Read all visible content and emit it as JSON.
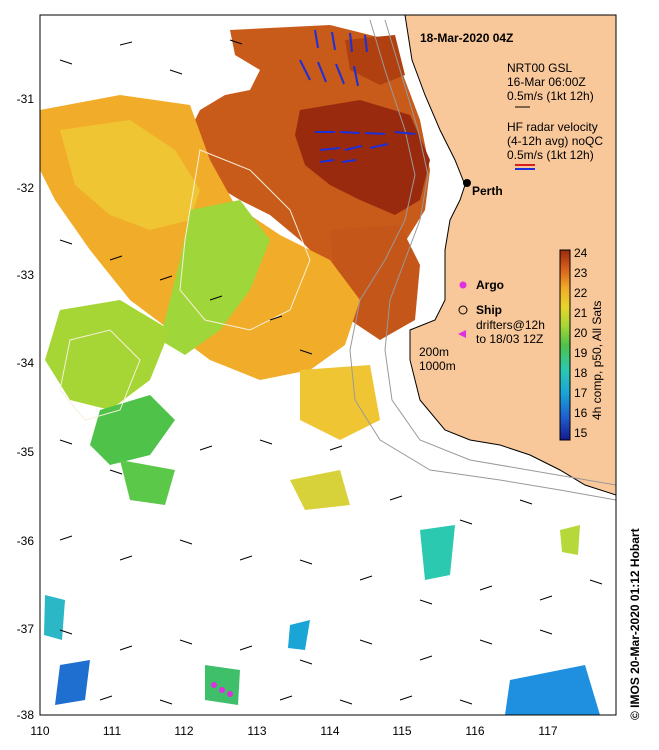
{
  "map": {
    "title": "18-Mar-2020 04Z",
    "city": "Perth",
    "lon_ticks": [
      "110",
      "111",
      "112",
      "113",
      "114",
      "115",
      "116",
      "117"
    ],
    "lat_ticks": [
      "-31",
      "-32",
      "-33",
      "-34",
      "-35",
      "-36",
      "-37",
      "-38"
    ],
    "credit": "© IMOS 20-Mar-2020 01:12 Hobart",
    "land_color": "#f8c79a",
    "legend": {
      "gsl_line1": "NRT00 GSL",
      "gsl_line2": "16-Mar 06:00Z",
      "gsl_line3": "0.5m/s (1kt 12h)",
      "radar_line1": "HF radar velocity",
      "radar_line2": "(4-12h avg) noQC",
      "radar_line3": "0.5m/s (1kt 12h)",
      "argo": "Argo",
      "ship": "Ship",
      "drifters_line1": "drifters@12h",
      "drifters_line2": "to 18/03 12Z",
      "contour_200": "200m",
      "contour_1000": "1000m"
    },
    "colorbar": {
      "ticks": [
        "24",
        "23",
        "22",
        "21",
        "20",
        "19",
        "18",
        "17",
        "16",
        "15"
      ],
      "label": "4h comp, p50, All Sats"
    }
  }
}
